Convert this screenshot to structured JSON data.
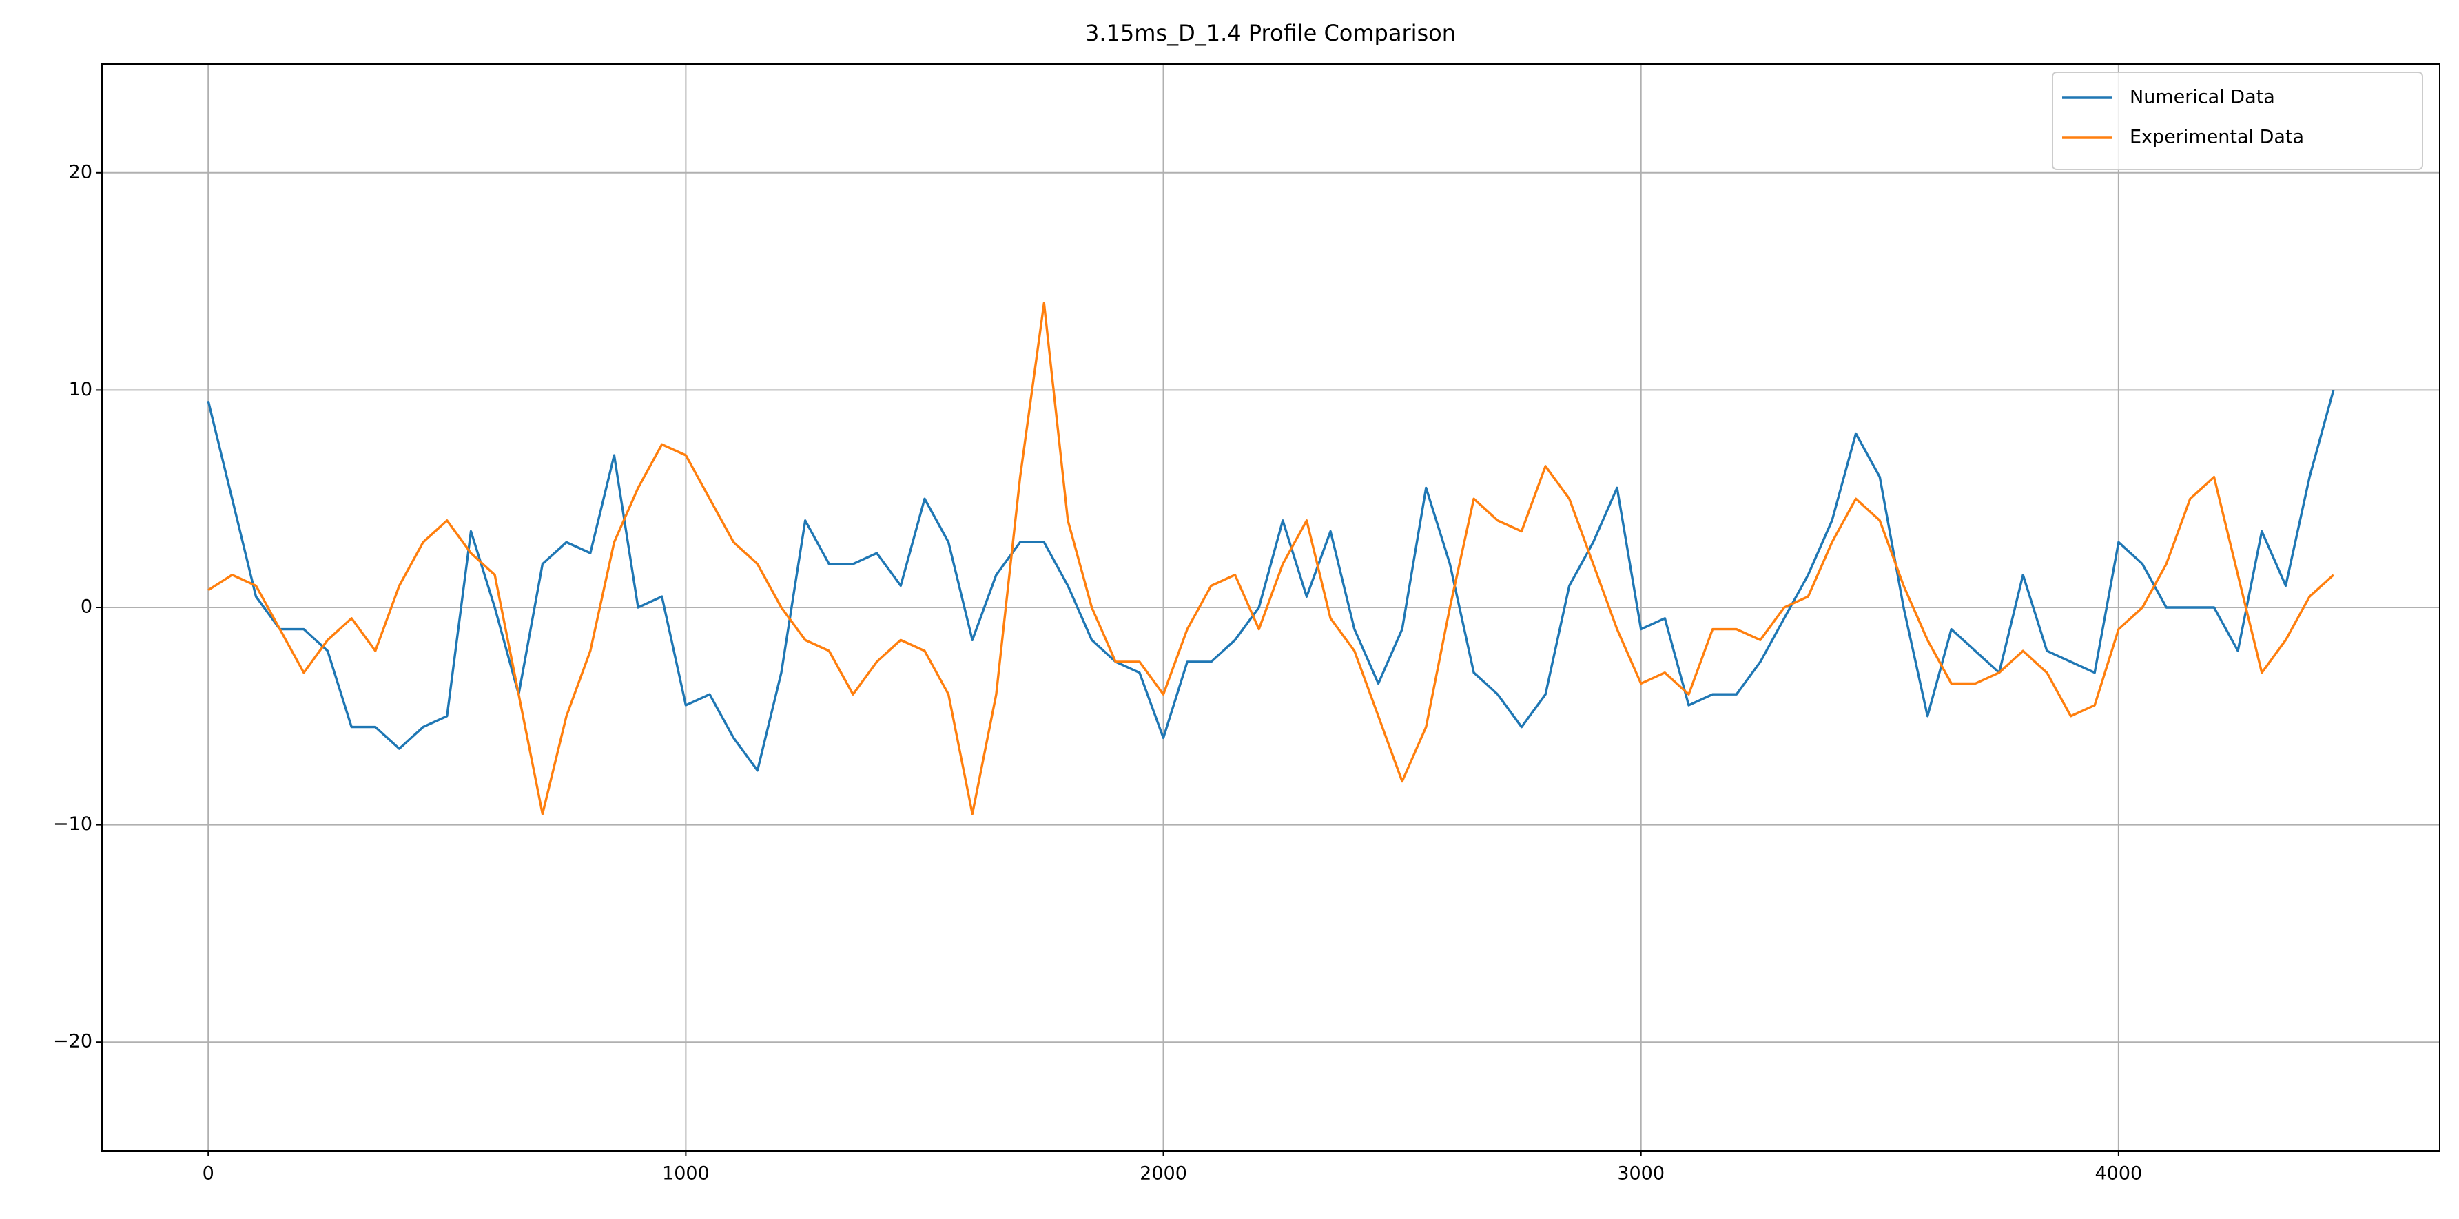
{
  "chart_data": {
    "type": "line",
    "title": "3.15ms_D_1.4 Profile Comparison",
    "x": [
      0,
      50,
      100,
      150,
      200,
      250,
      300,
      350,
      400,
      450,
      500,
      550,
      600,
      650,
      700,
      750,
      800,
      850,
      900,
      950,
      1000,
      1050,
      1100,
      1150,
      1200,
      1250,
      1300,
      1350,
      1400,
      1450,
      1500,
      1550,
      1600,
      1650,
      1700,
      1750,
      1800,
      1850,
      1900,
      1950,
      2000,
      2050,
      2100,
      2150,
      2200,
      2250,
      2300,
      2350,
      2400,
      2450,
      2500,
      2550,
      2600,
      2650,
      2700,
      2750,
      2800,
      2850,
      2900,
      2950,
      3000,
      3050,
      3100,
      3150,
      3200,
      3250,
      3300,
      3350,
      3400,
      3450,
      3500,
      3550,
      3600,
      3650,
      3700,
      3750,
      3800,
      3850,
      3900,
      3950,
      4000,
      4050,
      4100,
      4150,
      4200,
      4250,
      4300,
      4350,
      4400,
      4450
    ],
    "series": [
      {
        "name": "Numerical Data",
        "color": "#1f77b4",
        "values": [
          9.5,
          5,
          0.5,
          -1,
          -1,
          -2,
          -5.5,
          -5.5,
          -6.5,
          -5.5,
          -5,
          3.5,
          0,
          -4,
          2,
          3,
          2.5,
          7,
          0,
          0.5,
          -4.5,
          -4,
          -6,
          -7.5,
          -3,
          4,
          2,
          2,
          2.5,
          1,
          5,
          3,
          -1.5,
          1.5,
          3,
          3,
          1,
          -1.5,
          -2.5,
          -3,
          -6,
          -2.5,
          -2.5,
          -1.5,
          0,
          4,
          0.5,
          3.5,
          -1,
          -3.5,
          -1,
          5.5,
          2,
          -3,
          -4,
          -5.5,
          -4,
          1,
          3,
          5.5,
          -1,
          -0.5,
          -4.5,
          -4,
          -4,
          -2.5,
          -0.5,
          1.5,
          4,
          8,
          6,
          0,
          -5,
          -1,
          -2,
          -3,
          1.5,
          -2,
          -2.5,
          -3,
          3,
          2,
          0,
          0,
          0,
          -2,
          3.5,
          1,
          6,
          10
        ]
      },
      {
        "name": "Experimental Data",
        "color": "#ff7f0e",
        "values": [
          0.8,
          1.5,
          1,
          -1,
          -3,
          -1.5,
          -0.5,
          -2,
          1,
          3,
          4,
          2.5,
          1.5,
          -4,
          -9.5,
          -5,
          -2,
          3,
          5.5,
          7.5,
          7,
          5,
          3,
          2,
          0,
          -1.5,
          -2,
          -4,
          -2.5,
          -1.5,
          -2,
          -4,
          -9.5,
          -4,
          6,
          14,
          4,
          0,
          -2.5,
          -2.5,
          -4,
          -1,
          1,
          1.5,
          -1,
          2,
          4,
          -0.5,
          -2,
          -5,
          -8,
          -5.5,
          0,
          5,
          4,
          3.5,
          6.5,
          5,
          2,
          -1,
          -3.5,
          -3,
          -4,
          -1,
          -1,
          -1.5,
          0,
          0.5,
          3,
          5,
          4,
          1,
          -1.5,
          -3.5,
          -3.5,
          -3,
          -2,
          -3,
          -5,
          -4.5,
          -1,
          0,
          2,
          5,
          6,
          1.5,
          -3,
          -1.5,
          0.5,
          1.5
        ]
      }
    ],
    "xlim": [
      -222.5,
      4672.5
    ],
    "ylim": [
      -25,
      25
    ],
    "xticks": [
      0,
      1000,
      2000,
      3000,
      4000
    ],
    "yticks": [
      {
        "value": -20,
        "label": "−20"
      },
      {
        "value": -10,
        "label": "−10"
      },
      0,
      10,
      20
    ],
    "grid": true,
    "legend": "upper right"
  }
}
